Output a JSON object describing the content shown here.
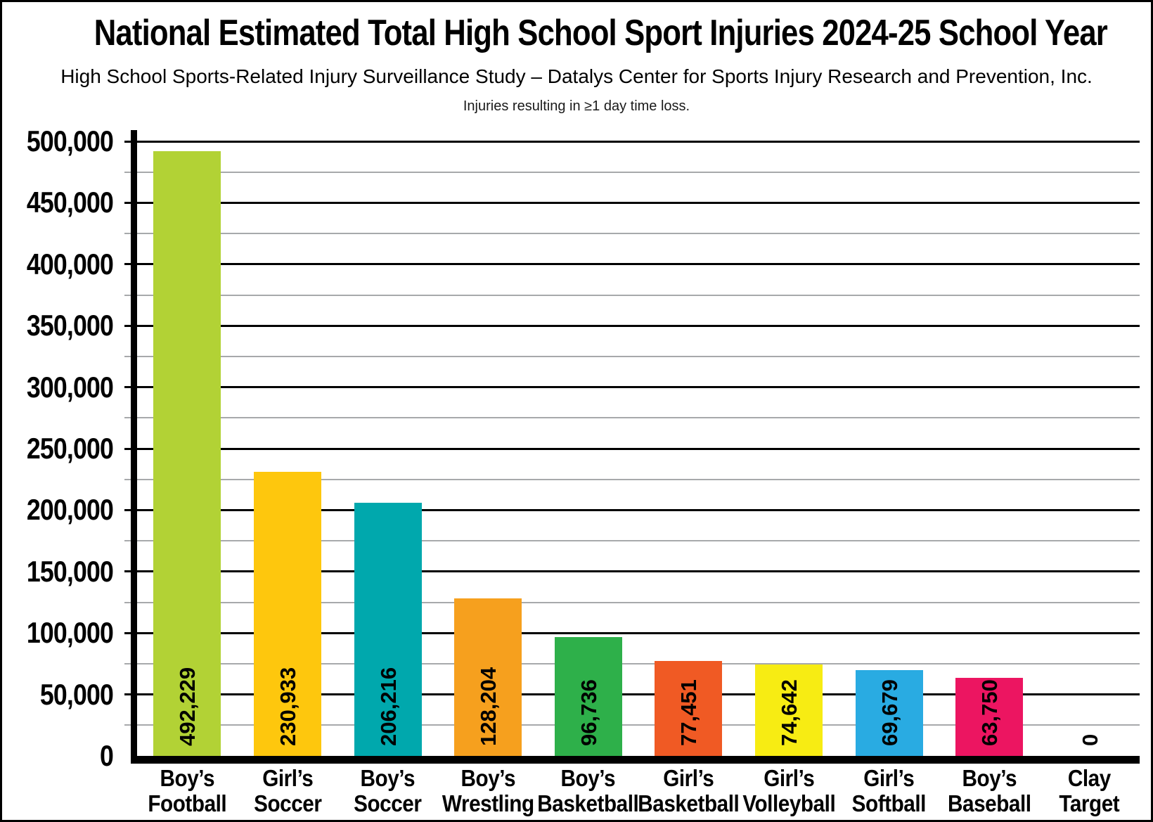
{
  "page": {
    "title": "National Estimated Total High School Sport Injuries 2024-25 School Year",
    "subtitle": "High School Sports-Related Injury Surveillance Study – Datalys Center for Sports Injury Research and Prevention, Inc.",
    "note": "Injuries resulting in ≥1 day time loss."
  },
  "chart_data": {
    "type": "bar",
    "title": "National Estimated Total High School Sport Injuries 2024-25 School Year",
    "subtitle": "High School Sports-Related Injury Surveillance Study – Datalys Center for Sports Injury Research and Prevention, Inc.",
    "annotation": "Injuries resulting in ≥1 day time loss.",
    "categories": [
      "Boy’s Football",
      "Girl’s Soccer",
      "Boy’s Soccer",
      "Boy’s Wrestling",
      "Boy’s Basketball",
      "Girl’s Basketball",
      "Girl’s Volleyball",
      "Girl’s Softball",
      "Boy’s Baseball",
      "Clay Target"
    ],
    "category_lines": [
      [
        "Boy’s",
        "Football"
      ],
      [
        "Girl’s",
        "Soccer"
      ],
      [
        "Boy’s",
        "Soccer"
      ],
      [
        "Boy’s",
        "Wrestling"
      ],
      [
        "Boy’s",
        "Basketball"
      ],
      [
        "Girl’s",
        "Basketball"
      ],
      [
        "Girl’s",
        "Volleyball"
      ],
      [
        "Girl’s",
        "Softball"
      ],
      [
        "Boy’s",
        "Baseball"
      ],
      [
        "Clay",
        "Target"
      ]
    ],
    "values": [
      492229,
      230933,
      206216,
      128204,
      96736,
      77451,
      74642,
      69679,
      63750,
      0
    ],
    "value_labels": [
      "492,229",
      "230,933",
      "206,216",
      "128,204",
      "96,736",
      "77,451",
      "74,642",
      "69,679",
      "63,750",
      "0"
    ],
    "bar_colors": [
      "#b2d235",
      "#fec70d",
      "#00a8ad",
      "#f6a01e",
      "#2eb04a",
      "#f05a24",
      "#f7ec13",
      "#29abe2",
      "#ec1561",
      "#ffffff"
    ],
    "value_label_rotation": -90,
    "xlabel": "",
    "ylabel": "",
    "ylim": [
      0,
      500000
    ],
    "ytick_major": 50000,
    "ytick_minor": 25000,
    "ytick_labels": [
      "0",
      "50,000",
      "100,000",
      "150,000",
      "200,000",
      "250,000",
      "300,000",
      "350,000",
      "400,000",
      "450,000",
      "500,000"
    ],
    "grid": "horizontal; major lines black every 50,000, minor lines gray every 25,000",
    "legend": "none"
  },
  "colors": {
    "background": "#ffffff",
    "frame_border": "#000000",
    "axis": "#000000",
    "major_grid": "#000000",
    "minor_grid": "#a7a9ab",
    "text": "#000000"
  }
}
